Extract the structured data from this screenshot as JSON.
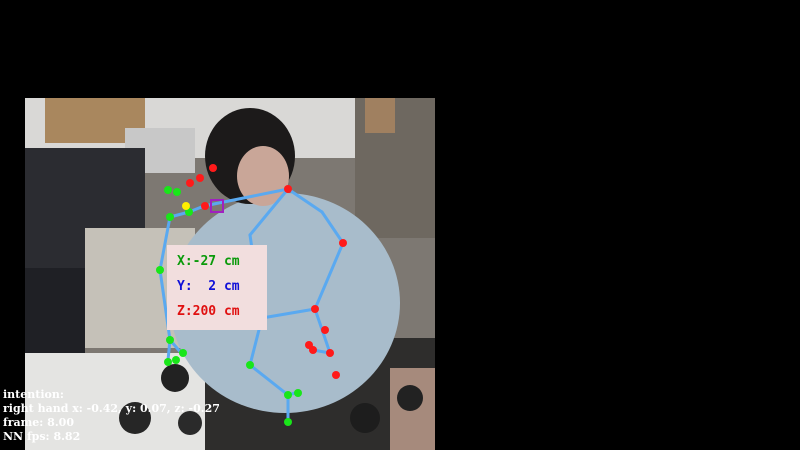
{
  "coordinates": {
    "x_label": "X:-27 cm",
    "y_label": "Y:  2 cm",
    "z_label": "Z:200 cm",
    "x_color": "#0a9a0a",
    "y_color": "#1010d8",
    "z_color": "#e01010"
  },
  "hud": {
    "intention_label": "intention:",
    "right_hand_line": "right hand x: -0.42, y: 0.07, z: -0.27",
    "frame_line": "frame: 8.00",
    "fps_line": "NN fps: 8.82"
  },
  "colors": {
    "bone": "#5aa9f0",
    "right_joint": "#ff1a1a",
    "left_joint": "#19e619",
    "highlight_joint": "#ffee00",
    "marker": "#a020c0",
    "background": "#000000"
  },
  "icons": {
    "hand_marker": "square-marker-icon"
  }
}
